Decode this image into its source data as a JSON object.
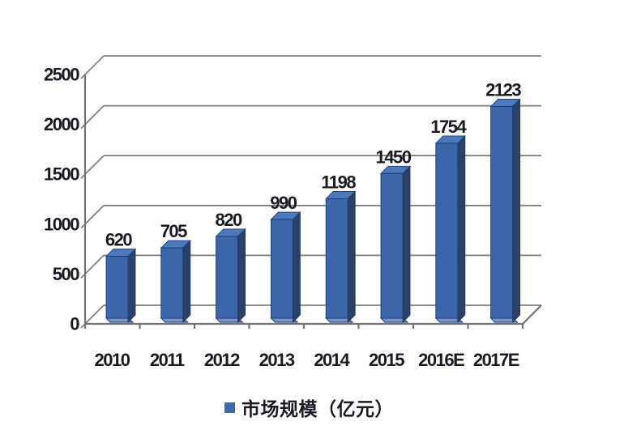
{
  "chart_data": {
    "type": "bar",
    "style": "3d-column",
    "title": "",
    "xlabel": "",
    "ylabel": "",
    "categories": [
      "2010",
      "2011",
      "2012",
      "2013",
      "2014",
      "2015",
      "2016E",
      "2017E"
    ],
    "values": [
      620,
      705,
      820,
      990,
      1198,
      1450,
      1754,
      2123
    ],
    "series_name": "市场规模（亿元）",
    "ylim": [
      0,
      2500
    ],
    "yticks": [
      0,
      500,
      1000,
      1500,
      2000,
      2500
    ],
    "grid": true,
    "legend_position": "bottom",
    "data_labels_shown": true,
    "colors": {
      "bar_front": "#3C66AA",
      "bar_top": "#4C78BC",
      "bar_side": "#2B4168",
      "bar_bevel": "#7896CB",
      "bar_outline": "#1E3A6E",
      "legend_marker": "#3B69B0",
      "gridline": "#7F7F7F",
      "axis": "#737373",
      "text": "#1A1A24",
      "background": "#FFFFFF"
    }
  }
}
